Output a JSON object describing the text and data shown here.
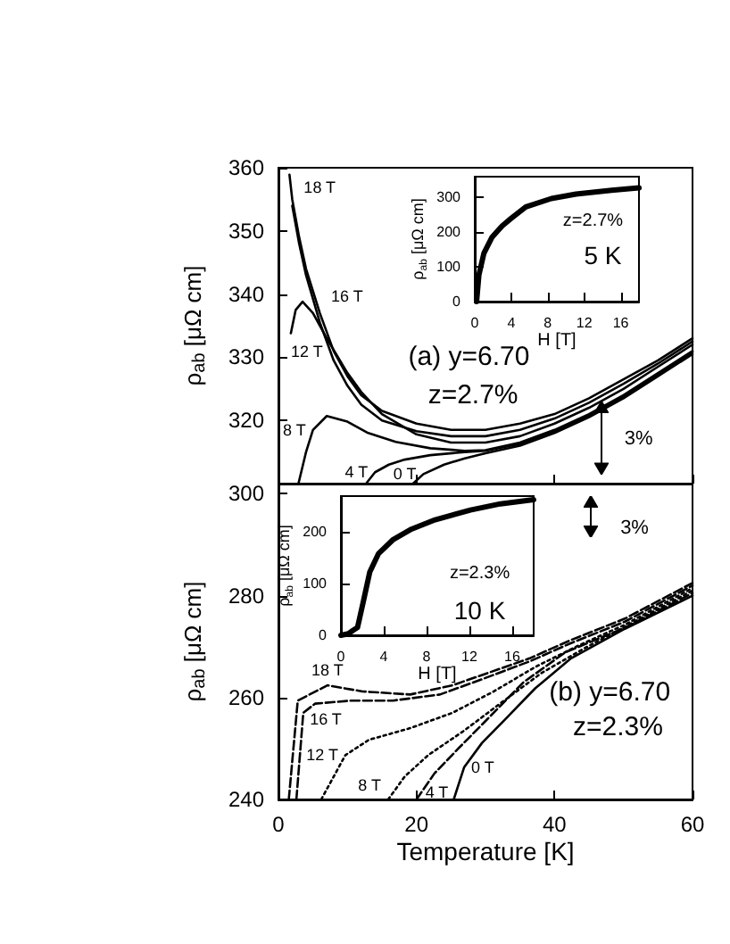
{
  "chart_data": [
    {
      "type": "line",
      "ylabel": "ρ$_{ab}$ [μΩ cm]",
      "xlim": [
        0,
        60
      ],
      "xticks": [
        0,
        20,
        40,
        60
      ],
      "ylim": [
        310,
        360
      ],
      "yticks": [
        320,
        330,
        340,
        350,
        360
      ],
      "tick_labels": "y",
      "marker": "none",
      "annotations": [
        "(a) y=6.70",
        "z=2.7%",
        "3%"
      ],
      "series": [
        {
          "name": "18 T",
          "color": "#000000",
          "line_style": "solid",
          "x": [
            1.6,
            2,
            3,
            4,
            6,
            8,
            10,
            12,
            15,
            20,
            25,
            30,
            35,
            40,
            45,
            50,
            55,
            60
          ],
          "values": [
            358.9,
            355,
            349,
            344,
            337,
            331,
            327,
            324,
            321.5,
            319.5,
            318.5,
            318.5,
            319.5,
            321,
            323.5,
            326.5,
            329.5,
            333
          ]
        },
        {
          "name": "16 T",
          "color": "#000000",
          "line_style": "solid",
          "x": [
            2,
            3,
            4,
            6,
            8,
            10,
            12,
            15,
            20,
            25,
            30,
            35,
            40,
            45,
            50,
            55,
            60
          ],
          "values": [
            354,
            348,
            343,
            335.5,
            329.5,
            325.5,
            322.5,
            320,
            318.3,
            317.5,
            317.5,
            318.5,
            320.3,
            322.8,
            325.8,
            329,
            332.5
          ]
        },
        {
          "name": "12 T",
          "color": "#000000",
          "line_style": "solid",
          "x": [
            1.8,
            2.5,
            3.5,
            5,
            7,
            10,
            12,
            15,
            20,
            25,
            30,
            35,
            40,
            45,
            50,
            55,
            60
          ],
          "values": [
            333.8,
            337.5,
            338.8,
            337,
            333,
            327.5,
            324.5,
            321,
            317.8,
            316.5,
            316.5,
            317.5,
            319.5,
            322,
            325,
            328.5,
            332
          ]
        },
        {
          "name": "8 T",
          "color": "#000000",
          "line_style": "solid",
          "x": [
            2.9,
            4,
            5,
            7,
            10,
            13,
            17,
            22,
            27,
            30,
            35,
            40,
            45,
            50,
            55,
            60
          ],
          "values": [
            310,
            315,
            318.5,
            320.7,
            319.8,
            318,
            316.6,
            315.6,
            315.2,
            315.3,
            316.5,
            318.5,
            321,
            324,
            327.5,
            331
          ]
        },
        {
          "name": "4 T",
          "color": "#000000",
          "line_style": "solid",
          "x": [
            12.7,
            14,
            16,
            18.3,
            22,
            27,
            30,
            35,
            40,
            45,
            50,
            55,
            60
          ],
          "values": [
            310,
            311.8,
            313,
            313.8,
            314.5,
            315,
            315.2,
            316.3,
            318.3,
            320.8,
            323.8,
            327.2,
            330.8
          ]
        },
        {
          "name": "0 T",
          "color": "#000000",
          "line_style": "solid",
          "x": [
            19.5,
            21,
            24,
            27,
            30,
            35,
            40,
            45,
            50,
            55,
            60
          ],
          "values": [
            310,
            311.5,
            313,
            314,
            314.8,
            316,
            318,
            320.5,
            323.5,
            327,
            330.5
          ]
        }
      ]
    },
    {
      "type": "line",
      "xlabel": "H [T]",
      "ylabel": "ρ$_{ab}$ [μΩ cm]",
      "xlim": [
        0,
        18
      ],
      "xticks": [
        0,
        4,
        8,
        12,
        16
      ],
      "ylim": [
        0,
        360
      ],
      "yticks": [
        0,
        100,
        200,
        300
      ],
      "marker": "none",
      "annotations": [
        "z=2.7%",
        "5 K"
      ],
      "series": [
        {
          "color": "#000000",
          "line_style": "solid",
          "x": [
            0.2,
            0.45,
            1.0,
            1.9,
            3.0,
            4,
            5.6,
            8.4,
            11.1,
            15,
            18
          ],
          "values": [
            0,
            76,
            139,
            186,
            218,
            240,
            273,
            297,
            310,
            321,
            328
          ]
        }
      ]
    },
    {
      "type": "line",
      "xlabel": "Temperature [K]",
      "ylabel": "ρ$_{ab}$ [μΩ cm]",
      "xlim": [
        0,
        60
      ],
      "xticks": [
        0,
        20,
        40,
        60
      ],
      "ylim": [
        240,
        302
      ],
      "yticks": [
        240,
        260,
        280,
        300
      ],
      "marker": "none",
      "annotations": [
        "(b) y=6.70",
        "z=2.3%",
        "3%"
      ],
      "series": [
        {
          "name": "18 T",
          "color": "#000000",
          "line_style": "dashed",
          "x": [
            1.5,
            2.8,
            7.1,
            12.2,
            19.1,
            25.2,
            30.3,
            36.4,
            42.4,
            50.2,
            60
          ],
          "values": [
            240,
            259.4,
            262.4,
            261.2,
            260.6,
            262.4,
            264.8,
            267.7,
            271.3,
            275.5,
            282.5
          ]
        },
        {
          "name": "16 T",
          "color": "#000000",
          "line_style": "dashed",
          "x": [
            2.6,
            3.6,
            5.3,
            10.5,
            16.6,
            23.4,
            29.5,
            36.4,
            42.4,
            50.2,
            60
          ],
          "values": [
            240,
            257,
            258.8,
            259.4,
            259.4,
            260.6,
            263.6,
            267.1,
            270.7,
            274.9,
            282
          ]
        },
        {
          "name": "12 T",
          "color": "#000000",
          "line_style": "dotted",
          "x": [
            6.2,
            9.7,
            13.1,
            19.1,
            25.2,
            31.2,
            37.2,
            43.3,
            50.2,
            60
          ],
          "values": [
            240,
            248.7,
            251.7,
            254,
            257,
            261.2,
            266,
            270.1,
            274.3,
            281.5
          ]
        },
        {
          "name": "8 T",
          "color": "#000000",
          "line_style": "dotted",
          "x": [
            15.9,
            18.3,
            21.7,
            26.9,
            32.1,
            38.1,
            44.1,
            50.2,
            60
          ],
          "values": [
            240,
            244.5,
            248.7,
            253.5,
            258.8,
            264.8,
            269.5,
            273.9,
            281
          ]
        },
        {
          "name": "4 T",
          "color": "#000000",
          "line_style": "dashed",
          "x": [
            20,
            22.6,
            26,
            30.3,
            35.5,
            41.6,
            50.2,
            60
          ],
          "values": [
            240,
            245.1,
            249.9,
            255.8,
            263,
            268.9,
            273.7,
            280.5
          ]
        },
        {
          "name": "0 T",
          "color": "#000000",
          "line_style": "solid",
          "x": [
            25.4,
            26.9,
            29.5,
            32.9,
            37.2,
            42.4,
            50.2,
            60
          ],
          "values": [
            240,
            246.3,
            251.1,
            255.8,
            261.8,
            267.7,
            273.5,
            280
          ]
        }
      ]
    },
    {
      "type": "line",
      "xlabel": "H [T]",
      "ylabel": "ρ$_{ab}$ [μΩ cm]",
      "xlim": [
        0,
        18
      ],
      "xticks": [
        0,
        4,
        8,
        12,
        16
      ],
      "ylim": [
        0,
        270
      ],
      "yticks": [
        0,
        100,
        200
      ],
      "marker": "none",
      "annotations": [
        "z=2.3%",
        "10 K"
      ],
      "series": [
        {
          "color": "#000000",
          "line_style": "solid",
          "x": [
            0,
            0.7,
            1.1,
            1.55,
            2.1,
            2.7,
            3.5,
            4.9,
            6.6,
            8.8,
            12.1,
            14.9,
            18
          ],
          "values": [
            0,
            3,
            9,
            15,
            66,
            123,
            158,
            186,
            206,
            224,
            243,
            255,
            263
          ]
        }
      ]
    }
  ]
}
